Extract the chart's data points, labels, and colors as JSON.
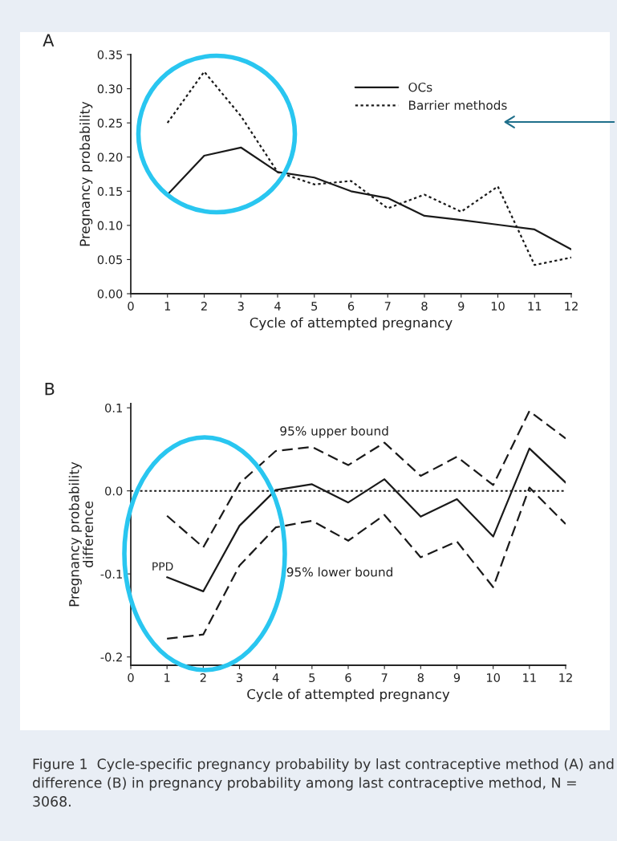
{
  "chart_data": [
    {
      "type": "line",
      "title": "A",
      "xlabel": "Cycle of attempted pregnancy",
      "ylabel": "Pregnancy probability",
      "x": [
        1,
        2,
        3,
        4,
        5,
        6,
        7,
        8,
        9,
        10,
        11,
        12
      ],
      "series": [
        {
          "name": "OCs",
          "color": "#1a1a1a",
          "line_style": "solid",
          "values": [
            0.145,
            0.202,
            0.214,
            0.178,
            0.17,
            0.15,
            0.14,
            0.114,
            0.108,
            0.101,
            0.094,
            0.065
          ]
        },
        {
          "name": "Barrier methods",
          "color": "#1a1a1a",
          "line_style": "dotted",
          "values": [
            0.25,
            0.325,
            0.26,
            0.178,
            0.16,
            0.165,
            0.125,
            0.145,
            0.12,
            0.157,
            0.042,
            0.053
          ]
        }
      ],
      "xlim": [
        0,
        12
      ],
      "xticks": [
        0,
        1,
        2,
        3,
        4,
        5,
        6,
        7,
        8,
        9,
        10,
        11,
        12
      ],
      "ylim": [
        0,
        0.35
      ],
      "yticks": [
        {
          "value": 0,
          "label": "0.00"
        },
        {
          "value": 0.05,
          "label": "0.05"
        },
        {
          "value": 0.1,
          "label": "0.10"
        },
        {
          "value": 0.15,
          "label": "0.15"
        },
        {
          "value": 0.2,
          "label": "0.20"
        },
        {
          "value": 0.25,
          "label": "0.25"
        },
        {
          "value": 0.3,
          "label": "0.30"
        },
        {
          "value": 0.35,
          "label": "0.35"
        }
      ],
      "legend": "top right",
      "grid": false,
      "marker": "none"
    },
    {
      "type": "line",
      "title": "B",
      "xlabel": "Cycle of attempted pregnancy",
      "ylabel": "Pregnancy probability difference",
      "x": [
        1,
        2,
        3,
        4,
        5,
        6,
        7,
        8,
        9,
        10,
        11,
        12
      ],
      "series": [
        {
          "name": "95% upper bound",
          "color": "#1a1a1a",
          "line_style": "dashed",
          "values": [
            -0.03,
            -0.068,
            0.009,
            0.048,
            0.053,
            0.031,
            0.058,
            0.018,
            0.041,
            0.007,
            0.096,
            0.063
          ]
        },
        {
          "name": "PPD",
          "color": "#1a1a1a",
          "line_style": "solid",
          "values": [
            -0.104,
            -0.121,
            -0.042,
            0.001,
            0.008,
            -0.014,
            0.014,
            -0.031,
            -0.01,
            -0.055,
            0.051,
            0.01
          ]
        },
        {
          "name": "95% lower bound",
          "color": "#1a1a1a",
          "line_style": "dashed",
          "values": [
            -0.178,
            -0.173,
            -0.09,
            -0.044,
            -0.036,
            -0.06,
            -0.029,
            -0.08,
            -0.061,
            -0.116,
            0.004,
            -0.04
          ]
        }
      ],
      "ref_lines": [
        {
          "axis": "y",
          "value": 0,
          "line_style": "dotted",
          "color": "#1a1a1a"
        }
      ],
      "xlim": [
        0,
        12
      ],
      "xticks": [
        0,
        1,
        2,
        3,
        4,
        5,
        6,
        7,
        8,
        9,
        10,
        11,
        12
      ],
      "ylim": [
        -0.21,
        0.105
      ],
      "yticks": [
        {
          "value": -0.2,
          "label": "-0.2"
        },
        {
          "value": -0.1,
          "label": "-0.1"
        },
        {
          "value": 0,
          "label": "0.0"
        },
        {
          "value": 0.1,
          "label": "0.1"
        }
      ],
      "legend": false,
      "grid": false,
      "marker": "none",
      "annotations": [
        "Figure 1  Cycle-specific pregnancy probability by last contraceptive method (A) and difference (B) in pregnancy probability among last contraceptive method, N = 3068."
      ]
    }
  ]
}
